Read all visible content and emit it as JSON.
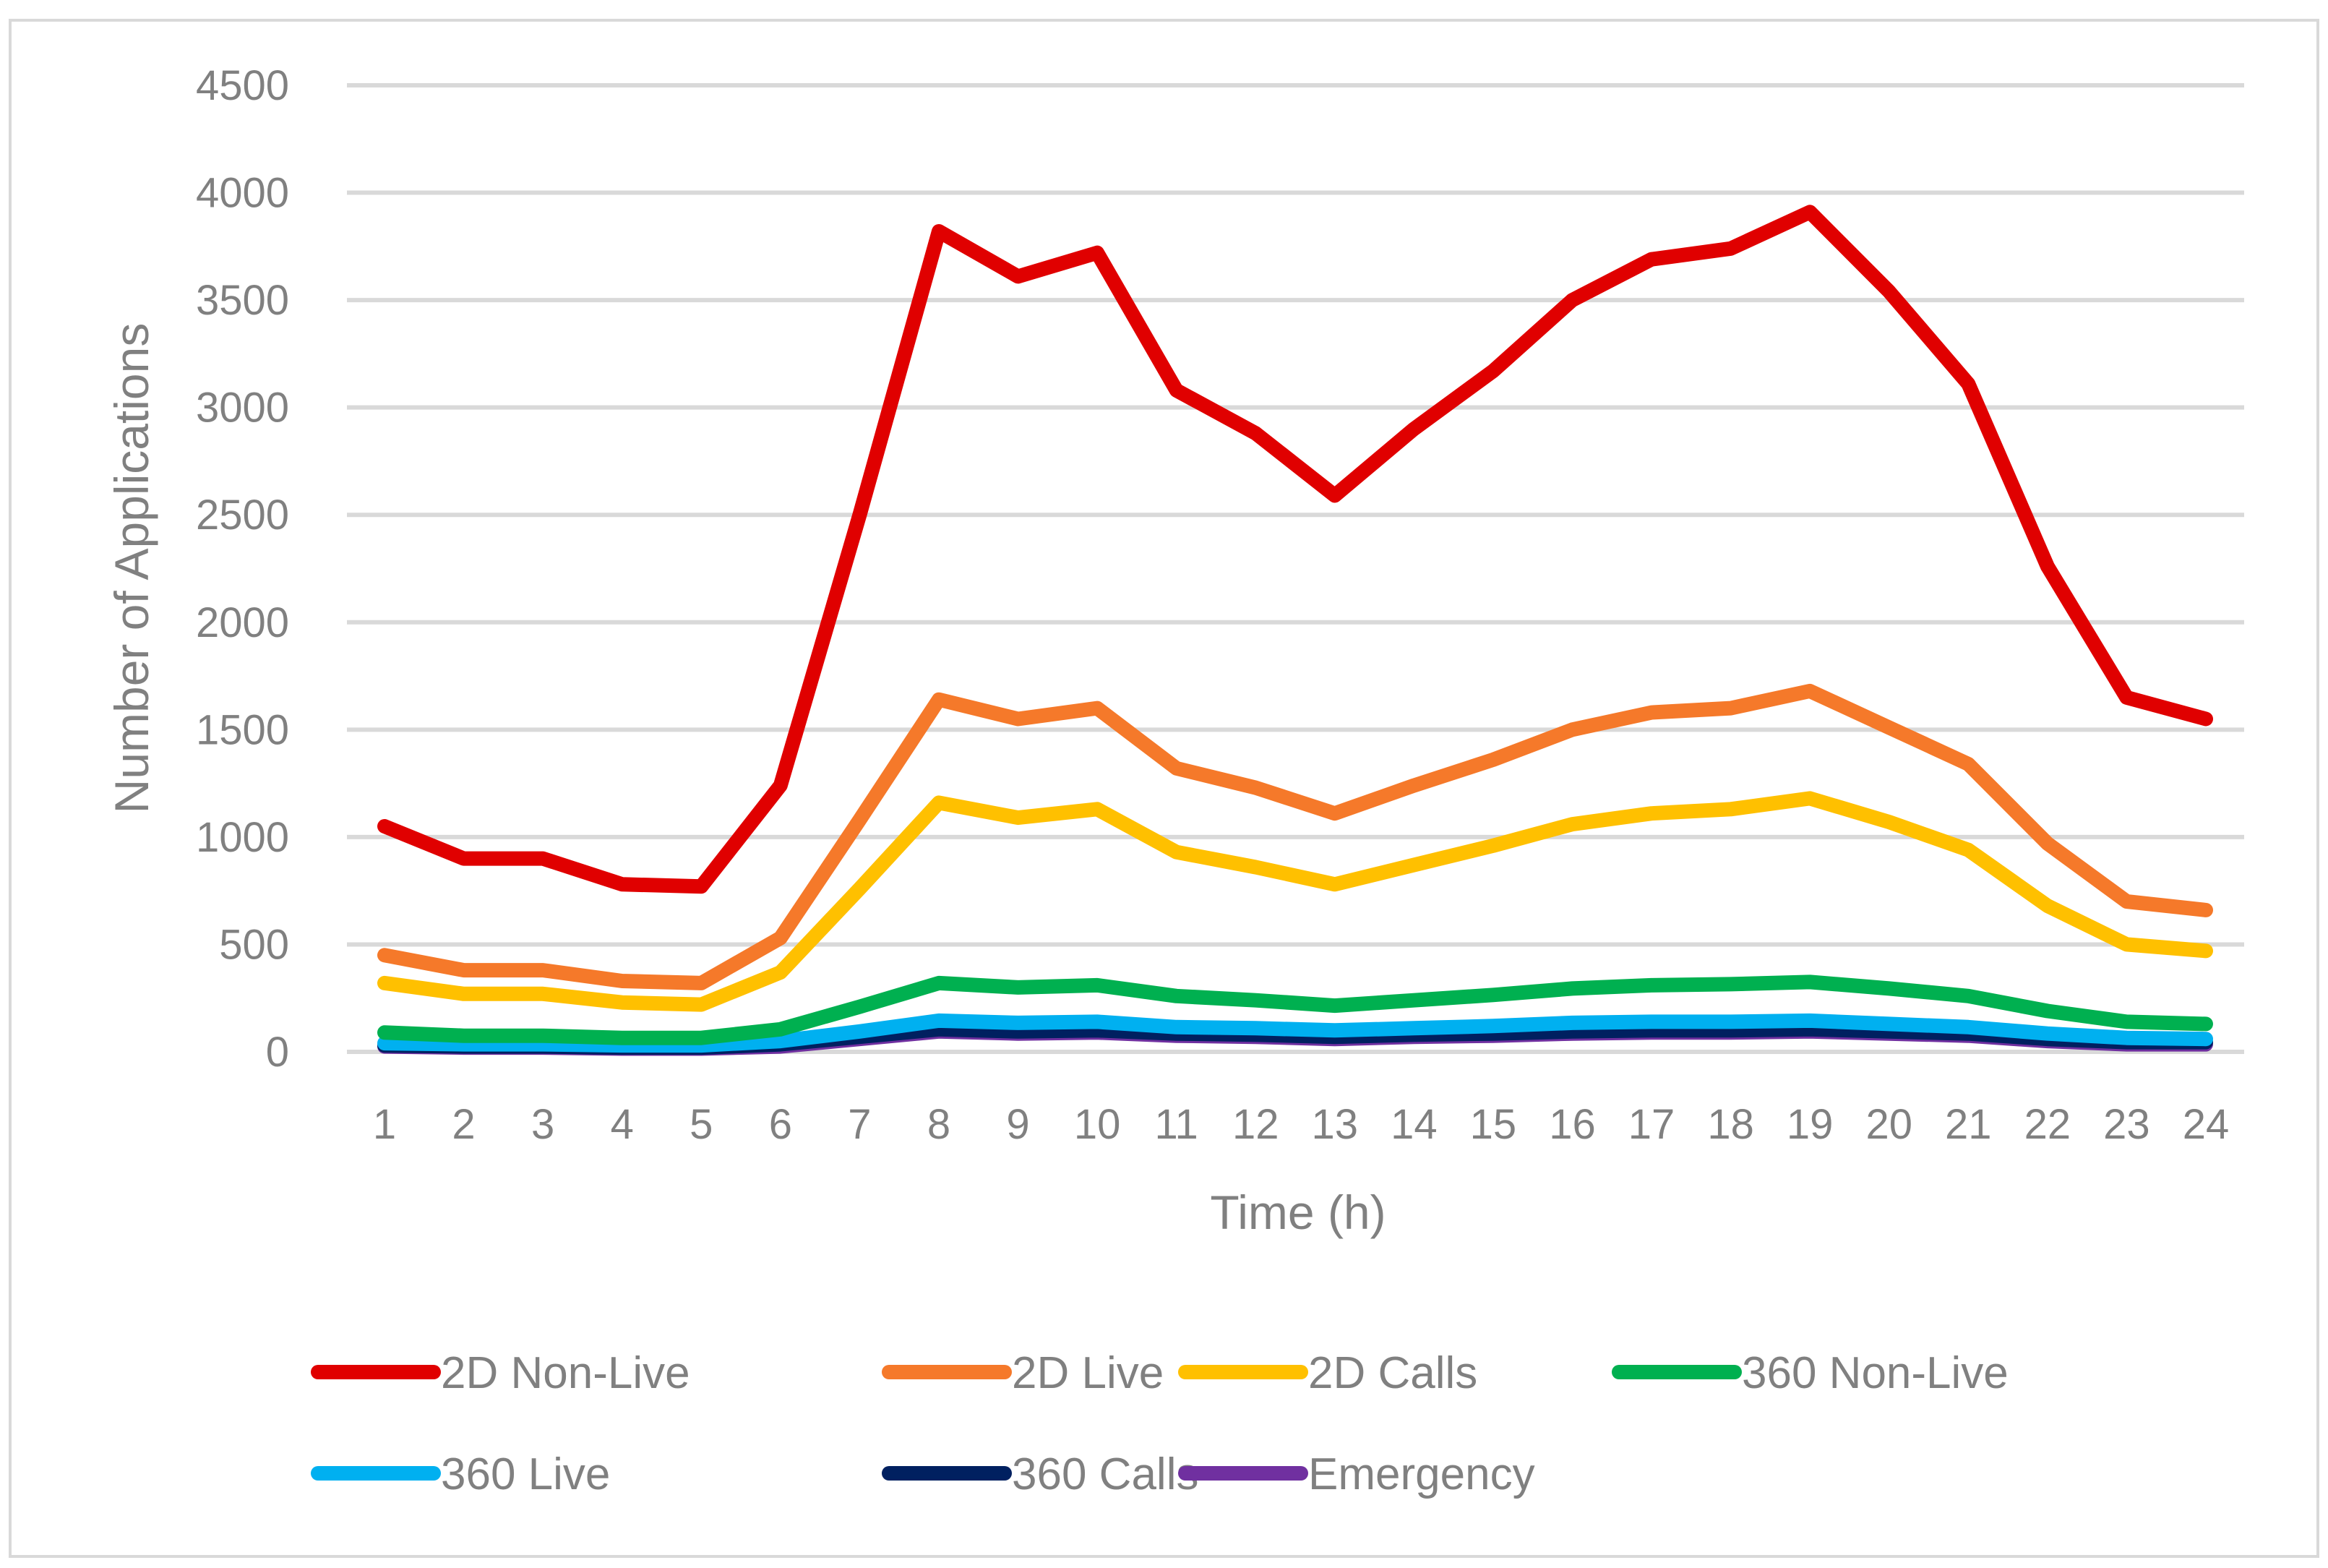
{
  "chart_data": {
    "type": "line",
    "title": "",
    "xlabel": "Time (h)",
    "ylabel": "Number of Applications",
    "ylim": [
      0,
      4500
    ],
    "yticks": [
      0,
      500,
      1000,
      1500,
      2000,
      2500,
      3000,
      3500,
      4000,
      4500
    ],
    "grid": true,
    "legend_position": "bottom",
    "x": [
      1,
      2,
      3,
      4,
      5,
      6,
      7,
      8,
      9,
      10,
      11,
      12,
      13,
      14,
      15,
      16,
      17,
      18,
      19,
      20,
      21,
      22,
      23,
      24
    ],
    "series": [
      {
        "name": "2D Non-Live",
        "color": "#e00000",
        "values": [
          1050,
          900,
          900,
          780,
          770,
          1240,
          2500,
          3820,
          3610,
          3720,
          3080,
          2880,
          2590,
          2900,
          3170,
          3500,
          3690,
          3740,
          3910,
          3540,
          3110,
          2260,
          1650,
          1550
        ]
      },
      {
        "name": "2D Live",
        "color": "#f5792a",
        "values": [
          450,
          380,
          380,
          330,
          320,
          530,
          1080,
          1640,
          1550,
          1600,
          1320,
          1230,
          1110,
          1240,
          1360,
          1500,
          1580,
          1600,
          1680,
          1510,
          1340,
          970,
          700,
          660
        ]
      },
      {
        "name": "2D Calls",
        "color": "#ffc000",
        "values": [
          320,
          270,
          270,
          230,
          220,
          370,
          760,
          1160,
          1090,
          1130,
          930,
          860,
          780,
          870,
          960,
          1060,
          1110,
          1130,
          1180,
          1070,
          940,
          680,
          500,
          470
        ]
      },
      {
        "name": "360 Non-Live",
        "color": "#00b050",
        "values": [
          90,
          75,
          75,
          65,
          65,
          105,
          210,
          320,
          300,
          310,
          260,
          240,
          215,
          240,
          265,
          295,
          310,
          315,
          325,
          295,
          260,
          190,
          140,
          130
        ]
      },
      {
        "name": "360 Live",
        "color": "#00b0f0",
        "values": [
          40,
          35,
          35,
          30,
          30,
          50,
          95,
          145,
          135,
          140,
          115,
          110,
          100,
          110,
          120,
          135,
          140,
          140,
          145,
          130,
          115,
          85,
          65,
          60
        ]
      },
      {
        "name": "360 Calls",
        "color": "#002060",
        "values": [
          30,
          25,
          25,
          20,
          20,
          35,
          70,
          105,
          95,
          100,
          85,
          80,
          70,
          80,
          85,
          95,
          100,
          100,
          105,
          95,
          85,
          60,
          45,
          45
        ]
      },
      {
        "name": "Emergency",
        "color": "#7030a0",
        "values": [
          25,
          20,
          20,
          15,
          15,
          25,
          60,
          95,
          85,
          90,
          75,
          70,
          60,
          70,
          75,
          85,
          90,
          90,
          95,
          85,
          75,
          50,
          35,
          35
        ]
      }
    ]
  }
}
